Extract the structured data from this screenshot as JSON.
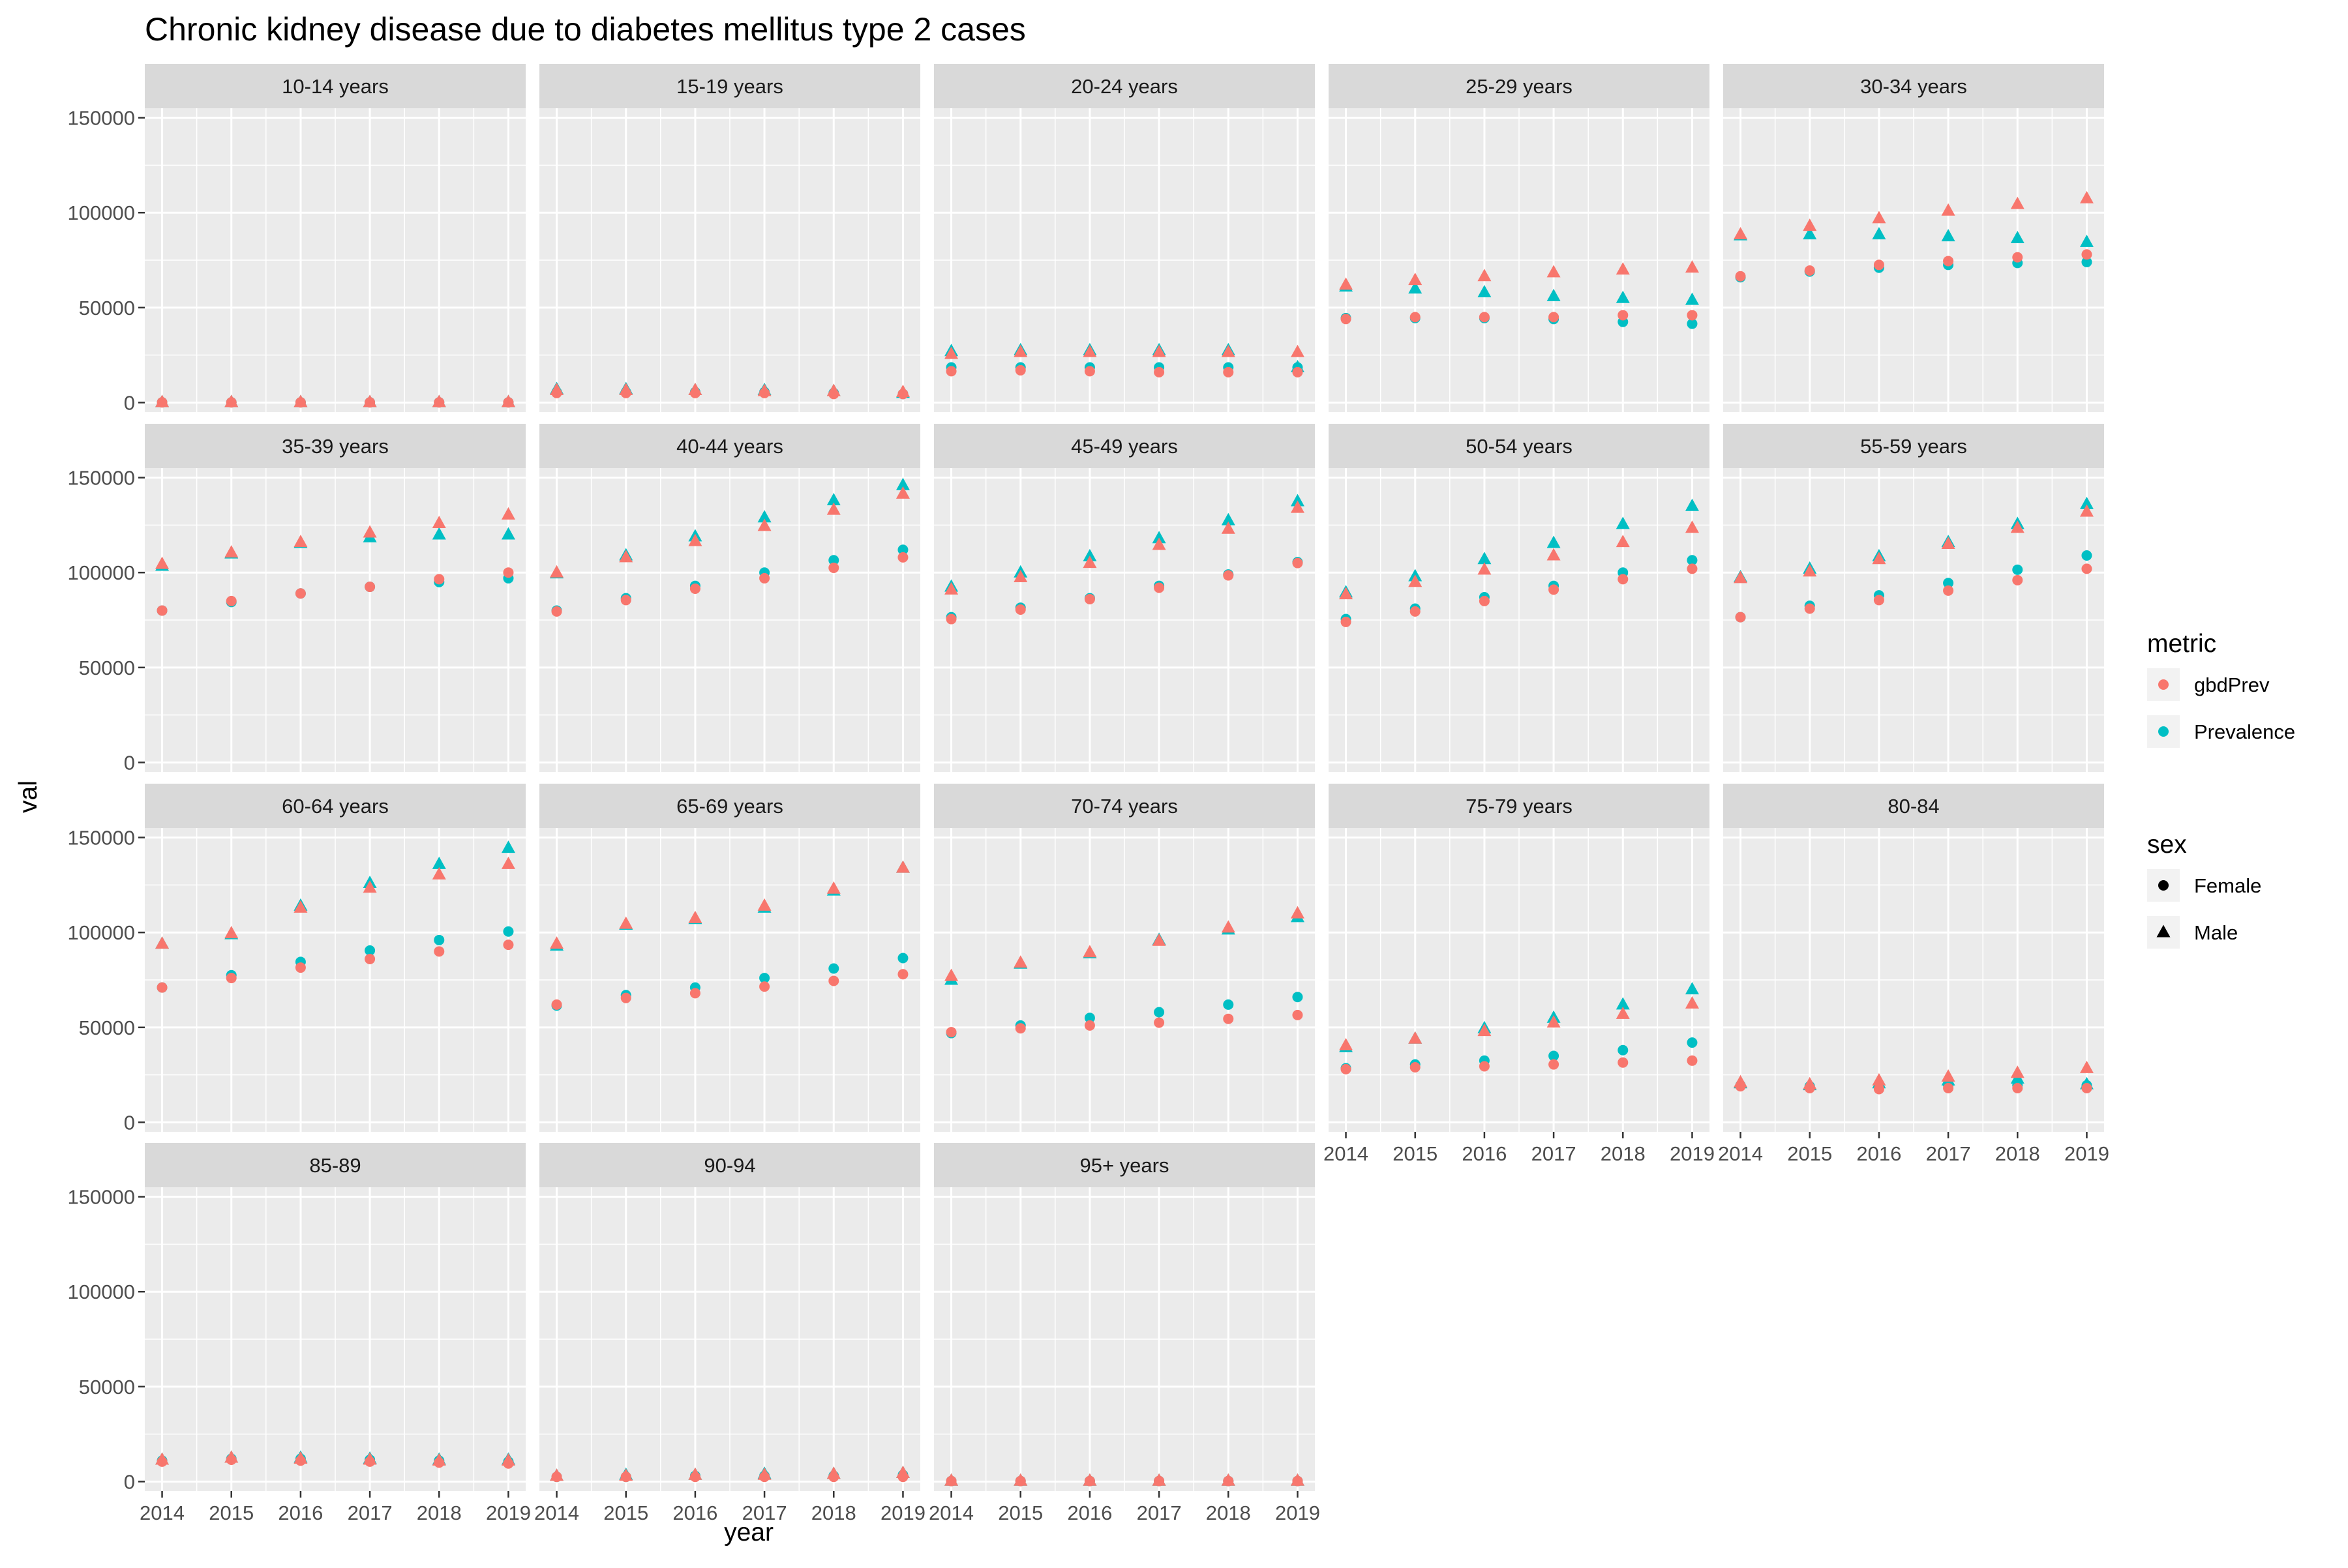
{
  "chart_data": {
    "type": "scatter",
    "title": "Chronic kidney disease due to diabetes mellitus type 2 cases",
    "xlabel": "year",
    "ylabel": "val",
    "x": [
      2014,
      2015,
      2016,
      2017,
      2018,
      2019
    ],
    "x_tick_labels": [
      "2014",
      "2015",
      "2016",
      "2017",
      "2018",
      "2019"
    ],
    "ylim": [
      -5000,
      155000
    ],
    "y_ticks": [
      0,
      50000,
      100000,
      150000
    ],
    "y_tick_labels": [
      "0",
      "50000",
      "100000",
      "150000"
    ],
    "grid": true,
    "layout": "facet_wrap 4 rows x 5 columns",
    "legend_position": "right",
    "legend": {
      "metric": {
        "title": "metric",
        "entries": [
          {
            "label": "gbdPrev",
            "color": "#F8766D"
          },
          {
            "label": "Prevalence",
            "color": "#00BFC4"
          }
        ]
      },
      "sex": {
        "title": "sex",
        "entries": [
          {
            "label": "Female",
            "shape": "circle"
          },
          {
            "label": "Male",
            "shape": "triangle"
          }
        ]
      }
    },
    "colors": {
      "gbdPrev": "#F8766D",
      "Prevalence": "#00BFC4",
      "panel_bg": "#EBEBEB",
      "strip_bg": "#D9D9D9",
      "grid": "#FFFFFF",
      "axis_text": "#4D4D4D",
      "tick": "#333333"
    },
    "facets": [
      {
        "label": "10-14 years",
        "gbdPrev_Female": [
          100,
          100,
          100,
          100,
          100,
          100
        ],
        "Prevalence_Female": [
          100,
          100,
          100,
          100,
          100,
          100
        ],
        "gbdPrev_Male": [
          200,
          200,
          200,
          200,
          200,
          200
        ],
        "Prevalence_Male": [
          200,
          200,
          200,
          200,
          200,
          200
        ]
      },
      {
        "label": "15-19 years",
        "gbdPrev_Female": [
          5000,
          5000,
          5000,
          5000,
          4500,
          4500
        ],
        "Prevalence_Female": [
          5500,
          5500,
          5500,
          5500,
          5000,
          4500
        ],
        "gbdPrev_Male": [
          6500,
          6500,
          6500,
          6000,
          6000,
          5500
        ],
        "Prevalence_Male": [
          7000,
          7000,
          6500,
          6500,
          6000,
          5000
        ]
      },
      {
        "label": "20-24 years",
        "gbdPrev_Female": [
          16500,
          17000,
          16500,
          16000,
          16000,
          16000
        ],
        "Prevalence_Female": [
          18500,
          18500,
          18500,
          18500,
          18500,
          18500
        ],
        "gbdPrev_Male": [
          25500,
          26500,
          26500,
          26500,
          26500,
          26500
        ],
        "Prevalence_Male": [
          27000,
          27500,
          27500,
          27500,
          27500,
          18500
        ]
      },
      {
        "label": "25-29 years",
        "gbdPrev_Female": [
          44000,
          45000,
          45000,
          45000,
          46000,
          46000
        ],
        "Prevalence_Female": [
          44500,
          44500,
          44500,
          44000,
          42500,
          41500
        ],
        "gbdPrev_Male": [
          62000,
          64500,
          66500,
          68500,
          70000,
          71000
        ],
        "Prevalence_Male": [
          61000,
          60000,
          58000,
          56000,
          55000,
          54000
        ]
      },
      {
        "label": "30-34 years",
        "gbdPrev_Female": [
          66500,
          69500,
          72500,
          74500,
          76500,
          78000
        ],
        "Prevalence_Female": [
          66000,
          69000,
          71000,
          72500,
          73500,
          74000
        ],
        "gbdPrev_Male": [
          88500,
          93000,
          97000,
          101000,
          104500,
          107500
        ],
        "Prevalence_Male": [
          88000,
          88500,
          88500,
          87500,
          86500,
          84500
        ]
      },
      {
        "label": "35-39 years",
        "gbdPrev_Female": [
          80000,
          85000,
          89000,
          92500,
          96500,
          100000
        ],
        "Prevalence_Female": [
          80000,
          84500,
          89000,
          92500,
          95000,
          97000
        ],
        "gbdPrev_Male": [
          104500,
          110500,
          116000,
          121000,
          126000,
          130500
        ],
        "Prevalence_Male": [
          103500,
          110000,
          115500,
          118500,
          120000,
          120000
        ]
      },
      {
        "label": "40-44 years",
        "gbdPrev_Female": [
          79500,
          85500,
          91500,
          97000,
          102500,
          108000
        ],
        "Prevalence_Female": [
          80000,
          86500,
          93000,
          100000,
          106500,
          112000
        ],
        "gbdPrev_Male": [
          100000,
          108000,
          116500,
          124500,
          133000,
          141500
        ],
        "Prevalence_Male": [
          99500,
          109000,
          119000,
          129000,
          138000,
          146000
        ]
      },
      {
        "label": "45-49 years",
        "gbdPrev_Female": [
          75500,
          80500,
          86000,
          92000,
          98500,
          105000
        ],
        "Prevalence_Female": [
          76500,
          81500,
          86500,
          93000,
          99000,
          105500
        ],
        "gbdPrev_Male": [
          91000,
          97500,
          105000,
          114500,
          123000,
          134000
        ],
        "Prevalence_Male": [
          92500,
          100000,
          108500,
          118000,
          127500,
          137500
        ]
      },
      {
        "label": "50-54 years",
        "gbdPrev_Female": [
          74000,
          79500,
          85000,
          91000,
          96500,
          102000
        ],
        "Prevalence_Female": [
          75500,
          81000,
          87000,
          93000,
          100000,
          106500
        ],
        "gbdPrev_Male": [
          88500,
          95000,
          101500,
          109000,
          116000,
          123500
        ],
        "Prevalence_Male": [
          89500,
          98000,
          107000,
          115500,
          125500,
          135000
        ]
      },
      {
        "label": "55-59 years",
        "gbdPrev_Female": [
          76500,
          81000,
          85500,
          90500,
          96000,
          102000
        ],
        "Prevalence_Female": [
          76500,
          82500,
          88000,
          94500,
          101500,
          109000
        ],
        "gbdPrev_Male": [
          97000,
          100500,
          107000,
          115000,
          123500,
          132000
        ],
        "Prevalence_Male": [
          97500,
          102000,
          108500,
          116000,
          125500,
          136000
        ]
      },
      {
        "label": "60-64 years",
        "gbdPrev_Female": [
          71000,
          76000,
          81500,
          86000,
          90000,
          93500
        ],
        "Prevalence_Female": [
          71000,
          77500,
          84500,
          90500,
          96000,
          100500
        ],
        "gbdPrev_Male": [
          94000,
          99500,
          113000,
          123500,
          130500,
          136000
        ],
        "Prevalence_Male": [
          94000,
          99000,
          114000,
          126000,
          136000,
          144500
        ]
      },
      {
        "label": "65-69 years",
        "gbdPrev_Female": [
          62000,
          65500,
          68000,
          71500,
          74500,
          78000
        ],
        "Prevalence_Female": [
          61500,
          67000,
          71000,
          76000,
          81000,
          86500
        ],
        "gbdPrev_Male": [
          94000,
          104500,
          107500,
          114000,
          123000,
          134000
        ],
        "Prevalence_Male": [
          93000,
          104000,
          107000,
          113000,
          122000,
          134000
        ]
      },
      {
        "label": "70-74 years",
        "gbdPrev_Female": [
          47500,
          49500,
          51000,
          52500,
          54500,
          56500
        ],
        "Prevalence_Female": [
          47000,
          51000,
          55000,
          58000,
          62000,
          66000
        ],
        "gbdPrev_Male": [
          77000,
          84000,
          89500,
          95500,
          102500,
          110000
        ],
        "Prevalence_Male": [
          75000,
          83500,
          89000,
          96000,
          101500,
          108000
        ]
      },
      {
        "label": "75-79 years",
        "gbdPrev_Female": [
          28000,
          29000,
          29500,
          30500,
          31500,
          32500
        ],
        "Prevalence_Female": [
          28500,
          30500,
          32500,
          35000,
          38000,
          42000
        ],
        "gbdPrev_Male": [
          40500,
          44000,
          48000,
          52500,
          57000,
          62500
        ],
        "Prevalence_Male": [
          39500,
          44000,
          49500,
          55000,
          62000,
          70000
        ]
      },
      {
        "label": "80-84",
        "gbdPrev_Female": [
          19000,
          18000,
          17500,
          18000,
          18000,
          18000
        ],
        "Prevalence_Female": [
          19500,
          19000,
          19000,
          19500,
          19500,
          19500
        ],
        "gbdPrev_Male": [
          21000,
          20000,
          22000,
          24000,
          26000,
          28500
        ],
        "Prevalence_Male": [
          20500,
          19500,
          20500,
          22000,
          23000,
          20000
        ]
      },
      {
        "label": "85-89",
        "gbdPrev_Female": [
          10500,
          11500,
          11000,
          10500,
          10000,
          9500
        ],
        "Prevalence_Female": [
          11000,
          12000,
          12000,
          11500,
          11000,
          10500
        ],
        "gbdPrev_Male": [
          11500,
          12500,
          12000,
          11500,
          11000,
          11000
        ],
        "Prevalence_Male": [
          11500,
          12500,
          12500,
          12000,
          11500,
          11500
        ]
      },
      {
        "label": "90-94",
        "gbdPrev_Female": [
          2500,
          2500,
          2500,
          2500,
          2500,
          2500
        ],
        "Prevalence_Female": [
          2500,
          2500,
          3000,
          3000,
          3000,
          3500
        ],
        "gbdPrev_Male": [
          3000,
          3000,
          3500,
          3500,
          4000,
          4500
        ],
        "Prevalence_Male": [
          3000,
          3500,
          3500,
          4000,
          4000,
          4500
        ]
      },
      {
        "label": "95+ years",
        "gbdPrev_Female": [
          300,
          300,
          300,
          300,
          300,
          300
        ],
        "Prevalence_Female": [
          300,
          300,
          300,
          300,
          300,
          300
        ],
        "gbdPrev_Male": [
          400,
          400,
          400,
          400,
          400,
          400
        ],
        "Prevalence_Male": [
          400,
          400,
          400,
          400,
          400,
          400
        ]
      }
    ]
  }
}
